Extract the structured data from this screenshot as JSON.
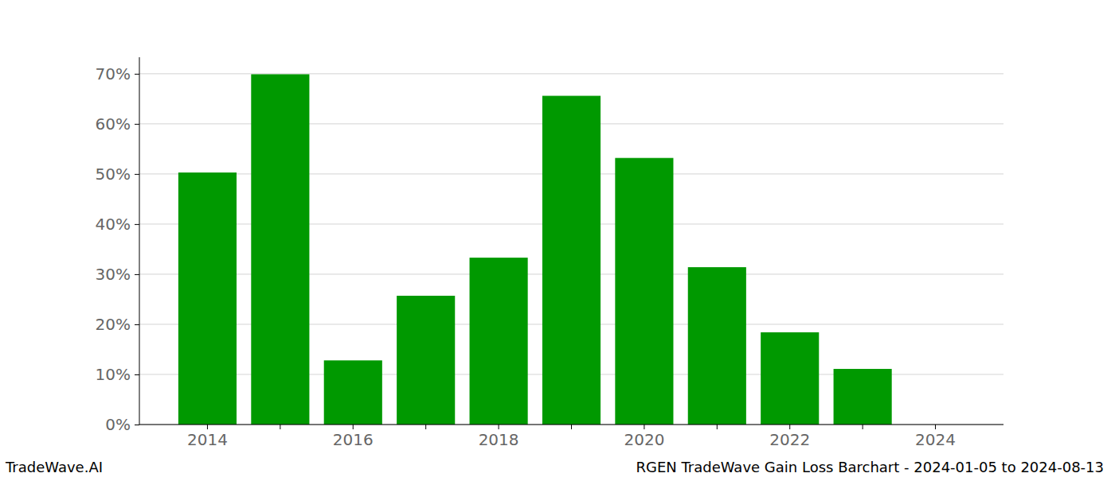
{
  "chart_data": {
    "type": "bar",
    "title": "RGEN TradeWave Gain Loss Barchart - 2024-01-05 to 2024-08-13",
    "source": "TradeWave.AI",
    "categories": [
      "2014",
      null,
      "2016",
      null,
      "2018",
      null,
      "2020",
      null,
      "2022",
      null,
      "2024"
    ],
    "values": [
      50.3,
      69.9,
      12.8,
      25.7,
      33.3,
      65.6,
      53.2,
      31.4,
      18.4,
      11.1,
      0
    ],
    "color": "#009900",
    "ylim": [
      0,
      73.3
    ],
    "yticks": [
      {
        "value": 0,
        "label": "0%"
      },
      {
        "value": 10,
        "label": "10%"
      },
      {
        "value": 20,
        "label": "20%"
      },
      {
        "value": 30,
        "label": "30%"
      },
      {
        "value": 40,
        "label": "40%"
      },
      {
        "value": 50,
        "label": "50%"
      },
      {
        "value": 60,
        "label": "60%"
      },
      {
        "value": 70,
        "label": "70%"
      }
    ],
    "grid": true
  }
}
